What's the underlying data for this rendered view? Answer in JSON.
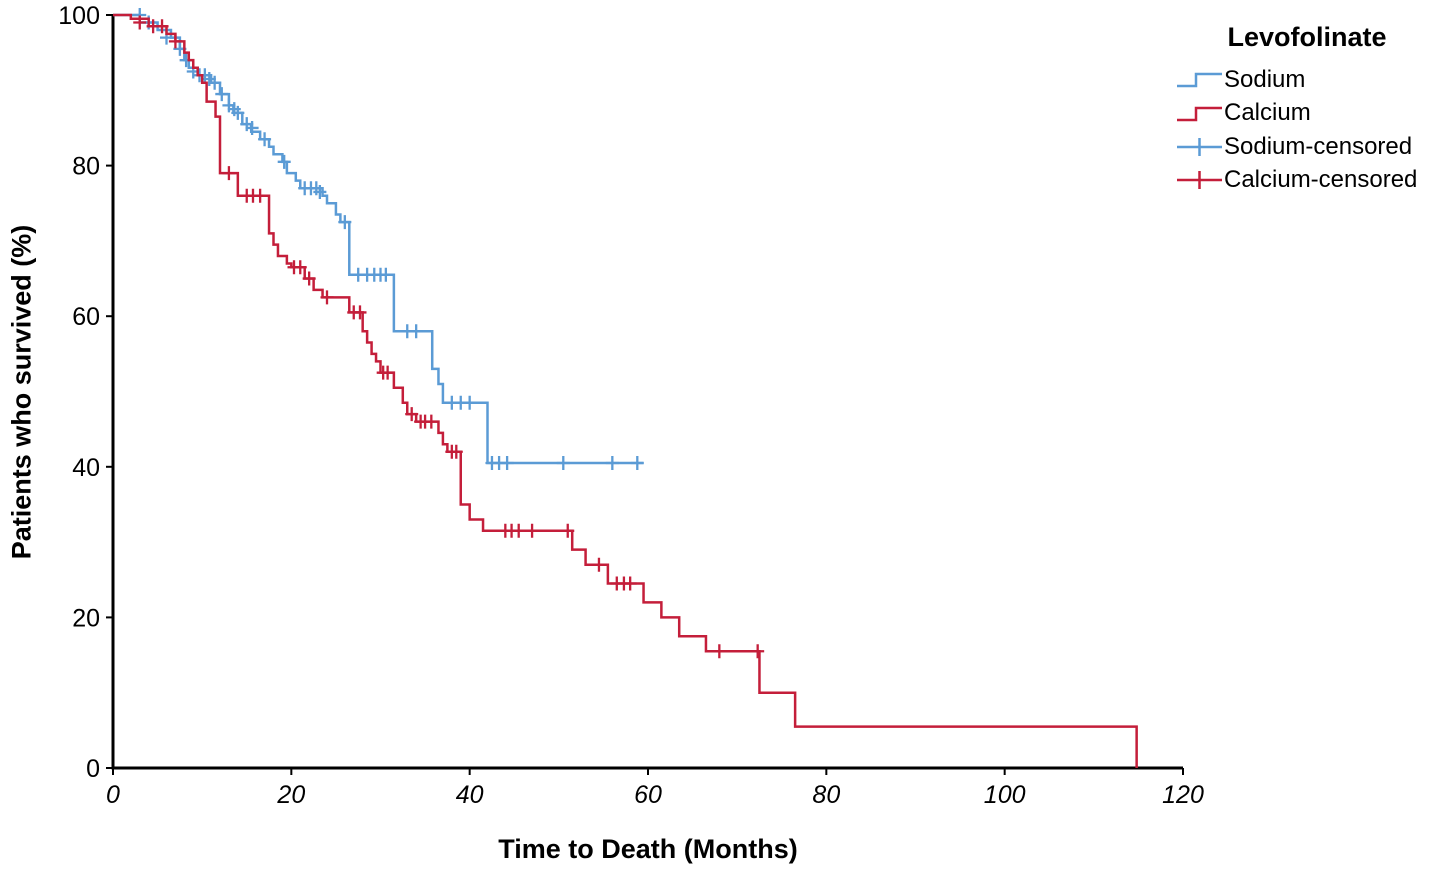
{
  "chart_data": {
    "type": "line",
    "variant": "kaplan-meier-step",
    "title": "",
    "xlabel": "Time to Death (Months)",
    "ylabel": "Patients who survived (%)",
    "xlim": [
      0,
      120
    ],
    "ylim": [
      0,
      100
    ],
    "xticks": [
      0,
      20,
      40,
      60,
      80,
      100,
      120
    ],
    "yticks": [
      0,
      20,
      40,
      60,
      80,
      100
    ],
    "grid": false,
    "colors": {
      "sodium_blue": "#5B9BD5",
      "calcium_red": "#C41E3A",
      "axis": "#000000",
      "background": "#FFFFFF"
    },
    "legend": {
      "title": "Levofolinate",
      "position": "top-right-outside",
      "entries": [
        {
          "label": "Sodium",
          "color": "#5B9BD5",
          "swatch": "step"
        },
        {
          "label": "Calcium",
          "color": "#C41E3A",
          "swatch": "step"
        },
        {
          "label": "Sodium-censored",
          "color": "#5B9BD5",
          "swatch": "censor"
        },
        {
          "label": "Calcium-censored",
          "color": "#C41E3A",
          "swatch": "censor"
        }
      ]
    },
    "series": [
      {
        "name": "Sodium",
        "color": "#5B9BD5",
        "end_x": 59.5,
        "steps": [
          [
            0,
            100
          ],
          [
            3,
            99
          ],
          [
            5,
            98
          ],
          [
            6.5,
            97
          ],
          [
            7.5,
            95.5
          ],
          [
            8,
            94
          ],
          [
            8.5,
            93
          ],
          [
            9.5,
            92
          ],
          [
            11,
            91
          ],
          [
            12,
            89.5
          ],
          [
            13,
            88
          ],
          [
            13.5,
            87
          ],
          [
            14.5,
            85.5
          ],
          [
            15.5,
            84.5
          ],
          [
            16.5,
            83.5
          ],
          [
            17.5,
            82.5
          ],
          [
            18,
            81.5
          ],
          [
            19,
            80.5
          ],
          [
            19.5,
            79
          ],
          [
            20.5,
            78
          ],
          [
            21,
            77
          ],
          [
            23.5,
            76
          ],
          [
            24,
            75
          ],
          [
            25,
            73.5
          ],
          [
            25.5,
            72.5
          ],
          [
            26.5,
            65.5
          ],
          [
            31.5,
            58
          ],
          [
            35.8,
            53
          ],
          [
            36.5,
            51
          ],
          [
            37,
            48.5
          ],
          [
            42,
            40.5
          ]
        ],
        "censored": [
          [
            3,
            100
          ],
          [
            4,
            99
          ],
          [
            6,
            97
          ],
          [
            7.5,
            95.5
          ],
          [
            8.2,
            94
          ],
          [
            9,
            92.5
          ],
          [
            9.7,
            92
          ],
          [
            10.3,
            92
          ],
          [
            10.8,
            91.5
          ],
          [
            11.4,
            91
          ],
          [
            12.2,
            89.5
          ],
          [
            13,
            88
          ],
          [
            13.6,
            87.5
          ],
          [
            14,
            87
          ],
          [
            15,
            85.5
          ],
          [
            15.6,
            85
          ],
          [
            17,
            83.5
          ],
          [
            19.2,
            80.5
          ],
          [
            21.5,
            77
          ],
          [
            22.2,
            77
          ],
          [
            22.8,
            77
          ],
          [
            23.2,
            76.5
          ],
          [
            26,
            72.5
          ],
          [
            27.5,
            65.5
          ],
          [
            28.5,
            65.5
          ],
          [
            29.3,
            65.5
          ],
          [
            30,
            65.5
          ],
          [
            30.6,
            65.5
          ],
          [
            33,
            58
          ],
          [
            34,
            58
          ],
          [
            38,
            48.5
          ],
          [
            39,
            48.5
          ],
          [
            40,
            48.5
          ],
          [
            42.5,
            40.5
          ],
          [
            43.3,
            40.5
          ],
          [
            44.2,
            40.5
          ],
          [
            50.5,
            40.5
          ],
          [
            56,
            40.5
          ],
          [
            58.8,
            40.5
          ]
        ]
      },
      {
        "name": "Calcium",
        "color": "#C41E3A",
        "end_x": 114.8,
        "steps": [
          [
            0,
            100
          ],
          [
            2,
            99.5
          ],
          [
            4,
            98.5
          ],
          [
            6,
            97.5
          ],
          [
            7,
            96.5
          ],
          [
            8,
            95
          ],
          [
            8.5,
            94
          ],
          [
            9,
            93
          ],
          [
            9.5,
            92
          ],
          [
            10,
            91
          ],
          [
            10.5,
            88.5
          ],
          [
            11.5,
            86.5
          ],
          [
            12,
            79
          ],
          [
            14,
            76
          ],
          [
            17.5,
            71
          ],
          [
            18,
            69.5
          ],
          [
            18.5,
            68
          ],
          [
            19.5,
            67
          ],
          [
            20,
            66.5
          ],
          [
            21.5,
            65
          ],
          [
            22.5,
            63.5
          ],
          [
            23.5,
            62.5
          ],
          [
            26.5,
            60.5
          ],
          [
            28,
            58
          ],
          [
            28.5,
            56.5
          ],
          [
            29,
            55
          ],
          [
            29.5,
            54
          ],
          [
            30,
            52.5
          ],
          [
            31.5,
            50.5
          ],
          [
            32.5,
            48.5
          ],
          [
            33,
            47
          ],
          [
            34,
            46
          ],
          [
            36.5,
            44.5
          ],
          [
            37,
            43
          ],
          [
            37.5,
            42
          ],
          [
            39,
            35
          ],
          [
            40,
            33
          ],
          [
            41.5,
            31.5
          ],
          [
            51.5,
            29
          ],
          [
            53,
            27
          ],
          [
            55.5,
            24.5
          ],
          [
            59.5,
            22
          ],
          [
            61.5,
            20
          ],
          [
            63.5,
            17.5
          ],
          [
            66.5,
            15.5
          ],
          [
            72.5,
            10
          ],
          [
            76.5,
            5.5
          ],
          [
            114.8,
            0
          ]
        ],
        "censored": [
          [
            3,
            99
          ],
          [
            4.5,
            98.5
          ],
          [
            5.5,
            98.5
          ],
          [
            7,
            96.5
          ],
          [
            13,
            79
          ],
          [
            15,
            76
          ],
          [
            15.7,
            76
          ],
          [
            16.5,
            76
          ],
          [
            20.3,
            66.5
          ],
          [
            21,
            66.5
          ],
          [
            22,
            65
          ],
          [
            24,
            62.5
          ],
          [
            27,
            60.5
          ],
          [
            27.7,
            60.5
          ],
          [
            30.3,
            52.5
          ],
          [
            30.8,
            52.5
          ],
          [
            33.5,
            47
          ],
          [
            34.5,
            46
          ],
          [
            35,
            46
          ],
          [
            35.7,
            46
          ],
          [
            38,
            42
          ],
          [
            38.5,
            42
          ],
          [
            44,
            31.5
          ],
          [
            44.7,
            31.5
          ],
          [
            45.5,
            31.5
          ],
          [
            47,
            31.5
          ],
          [
            51,
            31.5
          ],
          [
            54.5,
            27
          ],
          [
            56.5,
            24.5
          ],
          [
            57.3,
            24.5
          ],
          [
            58,
            24.5
          ],
          [
            68,
            15.5
          ],
          [
            72.3,
            15.5
          ]
        ]
      }
    ]
  }
}
